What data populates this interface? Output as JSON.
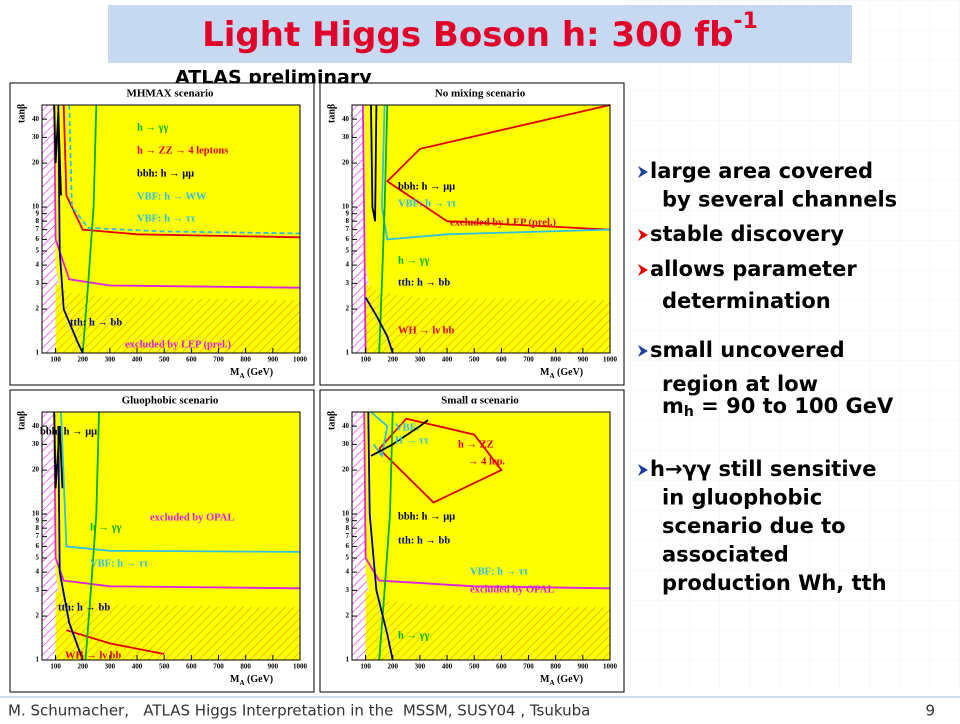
{
  "header": {
    "title": "Light Higgs Boson h: 300 fb",
    "title_sup": "-1",
    "subtitle": "ATLAS preliminary"
  },
  "axes": {
    "y_label": "tanβ",
    "x_label": "M",
    "x_label_sub": "A",
    "x_label_unit": " (GeV)",
    "xticks": [
      "100",
      "200",
      "300",
      "400",
      "500",
      "600",
      "700",
      "800",
      "900",
      "1000"
    ],
    "yticks": [
      "1",
      "2",
      "3",
      "4",
      "5",
      "6",
      "7",
      "8",
      "9",
      "10",
      "20",
      "30",
      "40"
    ]
  },
  "panels": [
    {
      "title": "MHMAX scenario",
      "labels": [
        {
          "text": "h → γγ",
          "color": "#00b000"
        },
        {
          "text": "h → ZZ → 4 leptons",
          "color": "#e00000"
        },
        {
          "text": "bbh: h → μμ",
          "color": "#000000"
        },
        {
          "text": "VBF: h → WW",
          "color": "#30c0e0"
        },
        {
          "text": "VBF: h → ττ",
          "color": "#30c0e0"
        },
        {
          "text": "tth: h → bb",
          "color": "#000080"
        },
        {
          "text": "excluded by LEP (prel.)",
          "color": "#e020e0"
        }
      ]
    },
    {
      "title": "No mixing scenario",
      "labels": [
        {
          "text": "bbh: h → μμ",
          "color": "#000000"
        },
        {
          "text": "VBF: h → ττ",
          "color": "#30c0e0"
        },
        {
          "text": "excluded by LEP (prel.)",
          "color": "#e00000"
        },
        {
          "text": "h → γγ",
          "color": "#00b000"
        },
        {
          "text": "tth: h → bb",
          "color": "#000080"
        },
        {
          "text": "WH → lν bb",
          "color": "#e00000"
        }
      ]
    },
    {
      "title": "Gluophobic scenario",
      "labels": [
        {
          "text": "bbh: h → μμ",
          "color": "#000000"
        },
        {
          "text": "h → γγ",
          "color": "#00b000"
        },
        {
          "text": "excluded by OPAL",
          "color": "#e020e0"
        },
        {
          "text": "VBF: h → ττ",
          "color": "#30c0e0"
        },
        {
          "text": "tth: h → bb",
          "color": "#000080"
        },
        {
          "text": "WH → lν bb",
          "color": "#e00000"
        }
      ]
    },
    {
      "title": "Small α scenario",
      "labels": [
        {
          "text": "VBF:",
          "color": "#30c0e0"
        },
        {
          "text": "H → ττ",
          "color": "#30c0e0"
        },
        {
          "text": "h → ZZ",
          "color": "#e00000"
        },
        {
          "text": "→ 4 lep.",
          "color": "#e00000"
        },
        {
          "text": "bbh: h → μμ",
          "color": "#000000"
        },
        {
          "text": "tth: h → bb",
          "color": "#000080"
        },
        {
          "text": "VBF: h → ττ",
          "color": "#30c0e0"
        },
        {
          "text": "excluded by OPAL",
          "color": "#e020e0"
        },
        {
          "text": "h → γγ",
          "color": "#00b000"
        }
      ]
    }
  ],
  "bullets": [
    {
      "lines": [
        "large area covered",
        "by several channels"
      ]
    },
    {
      "lines": [
        "stable discovery"
      ]
    },
    {
      "lines": [
        "allows parameter",
        "determination"
      ]
    },
    {
      "lines": [
        "small uncovered",
        "region at low"
      ],
      "mass_line": {
        "m": "m",
        "sub": "h",
        "rest": " = 90 to 100 GeV"
      }
    },
    {
      "lines": [
        "h→γγ still sensitive",
        "in gluophobic",
        "scenario due to",
        "associated",
        "production Wh, tth"
      ]
    }
  ],
  "footer": {
    "text": "M. Schumacher,   ATLAS Higgs Interpretation in the  MSSM, SUSY04 , Tsukuba",
    "page": "9"
  }
}
